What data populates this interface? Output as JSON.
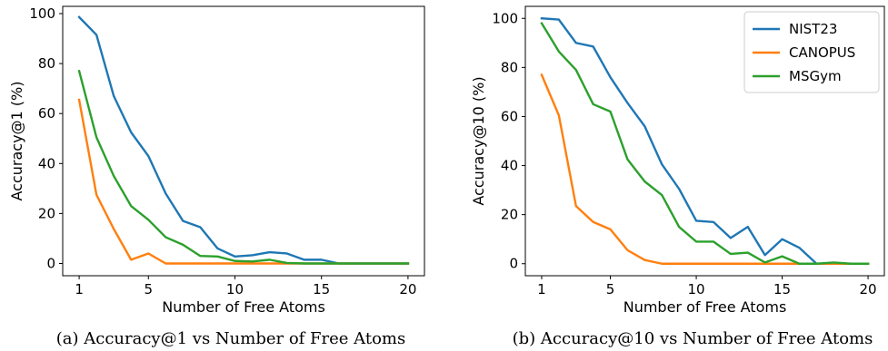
{
  "chart_data": [
    {
      "type": "line",
      "caption": "(a) Accuracy@1 vs Number of Free Atoms",
      "xlabel": "Number of Free Atoms",
      "ylabel": "Accuracy@1 (%)",
      "xlim": [
        0.05,
        20.95
      ],
      "ylim": [
        -4.9,
        102.9
      ],
      "xticks": [
        1,
        5,
        10,
        15,
        20
      ],
      "yticks": [
        0,
        20,
        40,
        60,
        80,
        100
      ],
      "grid": false,
      "legend": null,
      "x": [
        1,
        2,
        3,
        4,
        5,
        6,
        7,
        8,
        9,
        10,
        11,
        12,
        13,
        14,
        15,
        16,
        17,
        18,
        19,
        20
      ],
      "series": [
        {
          "name": "NIST23",
          "color": "#1f77b4",
          "values": [
            98.6,
            91.5,
            67.0,
            52.5,
            43.0,
            28.0,
            17.0,
            14.5,
            6.0,
            2.8,
            3.3,
            4.5,
            4.0,
            1.5,
            1.5,
            0,
            0,
            0,
            0,
            0
          ]
        },
        {
          "name": "CANOPUS",
          "color": "#ff7f0e",
          "values": [
            65.5,
            27.5,
            13.8,
            1.5,
            4.0,
            0,
            0,
            0,
            0,
            0,
            0,
            0,
            0,
            0,
            0,
            0,
            0,
            0,
            0,
            0
          ]
        },
        {
          "name": "MSGym",
          "color": "#2ca02c",
          "values": [
            77.0,
            50.5,
            35.0,
            23.0,
            17.5,
            10.5,
            7.5,
            3.0,
            2.8,
            1.0,
            0.8,
            1.5,
            0.2,
            0,
            0,
            0,
            0,
            0,
            0,
            0
          ]
        }
      ]
    },
    {
      "type": "line",
      "caption": "(b) Accuracy@10 vs Number of Free Atoms",
      "xlabel": "Number of Free Atoms",
      "ylabel": "Accuracy@10 (%)",
      "xlim": [
        0.05,
        20.95
      ],
      "ylim": [
        -4.9,
        104.9
      ],
      "xticks": [
        1,
        5,
        10,
        15,
        20
      ],
      "yticks": [
        0,
        20,
        40,
        60,
        80,
        100
      ],
      "grid": false,
      "legend": "top-right",
      "x": [
        1,
        2,
        3,
        4,
        5,
        6,
        7,
        8,
        9,
        10,
        11,
        12,
        13,
        14,
        15,
        16,
        17,
        18,
        19,
        20
      ],
      "series": [
        {
          "name": "NIST23",
          "color": "#1f77b4",
          "values": [
            100,
            99.5,
            90.0,
            88.5,
            76.0,
            65.5,
            56.0,
            40.5,
            30.5,
            17.5,
            17.0,
            10.5,
            15.0,
            3.5,
            10.0,
            6.5,
            0,
            0,
            0,
            0
          ]
        },
        {
          "name": "CANOPUS",
          "color": "#ff7f0e",
          "values": [
            77.0,
            60.5,
            23.5,
            17.0,
            14.0,
            5.5,
            1.5,
            0,
            0,
            0,
            0,
            0,
            0,
            0,
            0,
            0,
            0,
            0,
            0,
            0
          ]
        },
        {
          "name": "MSGym",
          "color": "#2ca02c",
          "values": [
            98.0,
            86.5,
            79.0,
            65.0,
            62.0,
            42.5,
            33.5,
            28.0,
            15.0,
            9.0,
            9.0,
            4.0,
            4.5,
            0.5,
            3.0,
            0,
            0,
            0.5,
            0,
            0
          ]
        }
      ]
    }
  ]
}
